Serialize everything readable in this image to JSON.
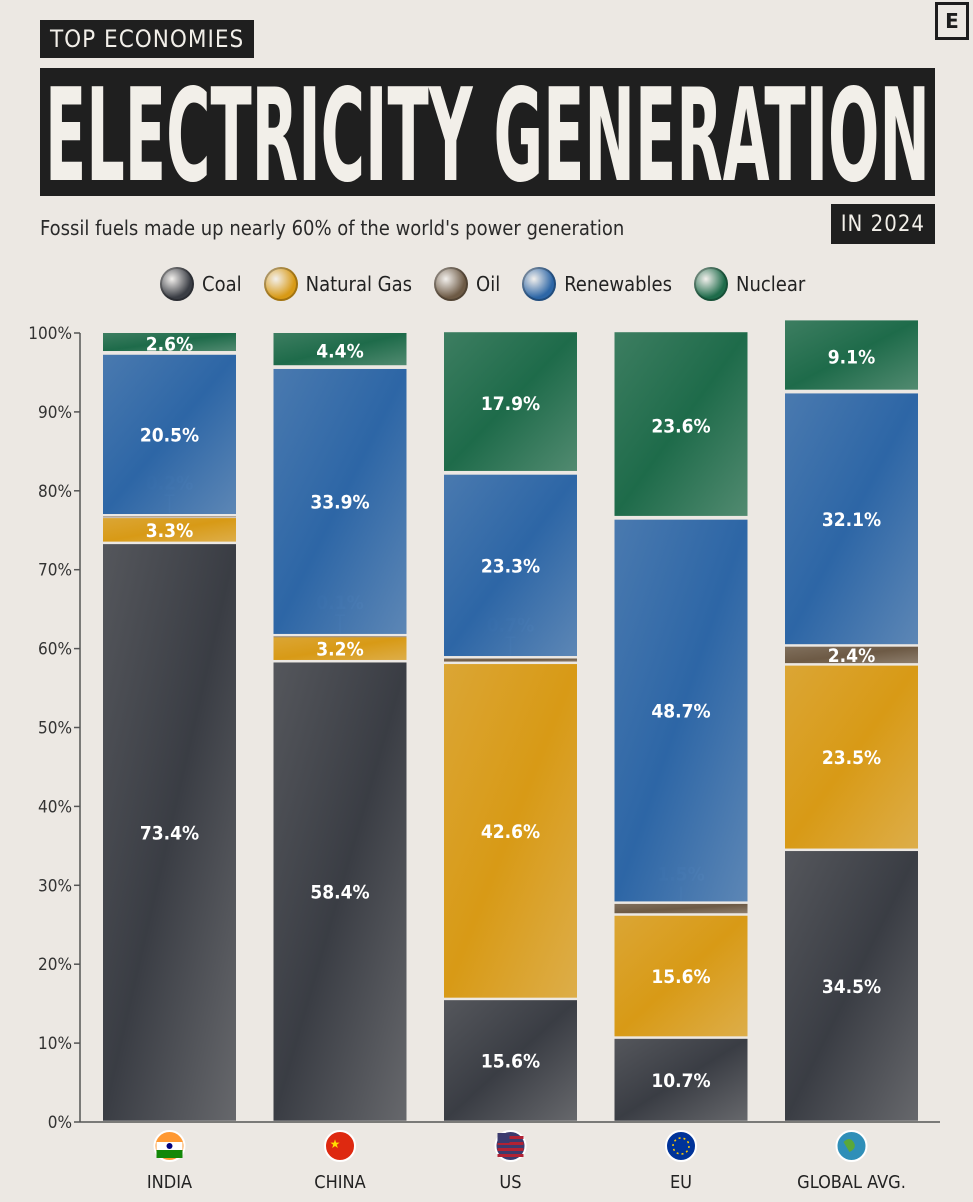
{
  "brand": {
    "logo_letter": "E"
  },
  "header": {
    "kicker": "TOP ECONOMIES",
    "title": "ELECTRICITY GENERATION",
    "subtitle": "Fossil fuels made up nearly 60% of the world's power generation",
    "year_tag": "IN 2024"
  },
  "legend": [
    {
      "label": "Coal",
      "color": "#3a3d44"
    },
    {
      "label": "Natural Gas",
      "color": "#d89a16"
    },
    {
      "label": "Oil",
      "color": "#6d5a45"
    },
    {
      "label": "Renewables",
      "color": "#2d66a6"
    },
    {
      "label": "Nuclear",
      "color": "#1e6b4a"
    }
  ],
  "chart_data": {
    "type": "bar",
    "stacked": true,
    "ylim": [
      0,
      100
    ],
    "yticks": [
      "0%",
      "10%",
      "20%",
      "30%",
      "40%",
      "50%",
      "60%",
      "70%",
      "80%",
      "90%",
      "100%"
    ],
    "categories": [
      "INDIA",
      "CHINA",
      "US",
      "EU",
      "GLOBAL AVG."
    ],
    "category_icons": [
      "india-flag-icon",
      "china-flag-icon",
      "us-flag-icon",
      "eu-flag-icon",
      "globe-icon"
    ],
    "series": [
      {
        "name": "Coal",
        "color": "#3a3d44",
        "values": [
          73.4,
          58.4,
          15.6,
          10.7,
          34.5
        ],
        "labels": [
          "73.4%",
          "58.4%",
          "15.6%",
          "10.7%",
          "34.5%"
        ]
      },
      {
        "name": "Natural Gas",
        "color": "#d89a16",
        "values": [
          3.3,
          3.2,
          42.6,
          15.6,
          23.5
        ],
        "labels": [
          "3.3%",
          "3.2%",
          "42.6%",
          "15.6%",
          "23.5%"
        ]
      },
      {
        "name": "Oil",
        "color": "#6d5a45",
        "values": [
          0.2,
          0.1,
          0.7,
          1.5,
          2.4
        ],
        "labels": [
          "0.2%",
          "0.1%",
          "0.7%",
          "1.5%",
          "2.4%"
        ]
      },
      {
        "name": "Renewables",
        "color": "#2d66a6",
        "values": [
          20.5,
          33.9,
          23.3,
          48.7,
          32.1
        ],
        "labels": [
          "20.5%",
          "33.9%",
          "23.3%",
          "48.7%",
          "32.1%"
        ]
      },
      {
        "name": "Nuclear",
        "color": "#1e6b4a",
        "values": [
          2.6,
          4.4,
          17.9,
          23.6,
          9.1
        ],
        "labels": [
          "2.6%",
          "4.4%",
          "17.9%",
          "23.6%",
          "9.1%"
        ]
      }
    ],
    "grid": false,
    "legend_position": "top"
  }
}
